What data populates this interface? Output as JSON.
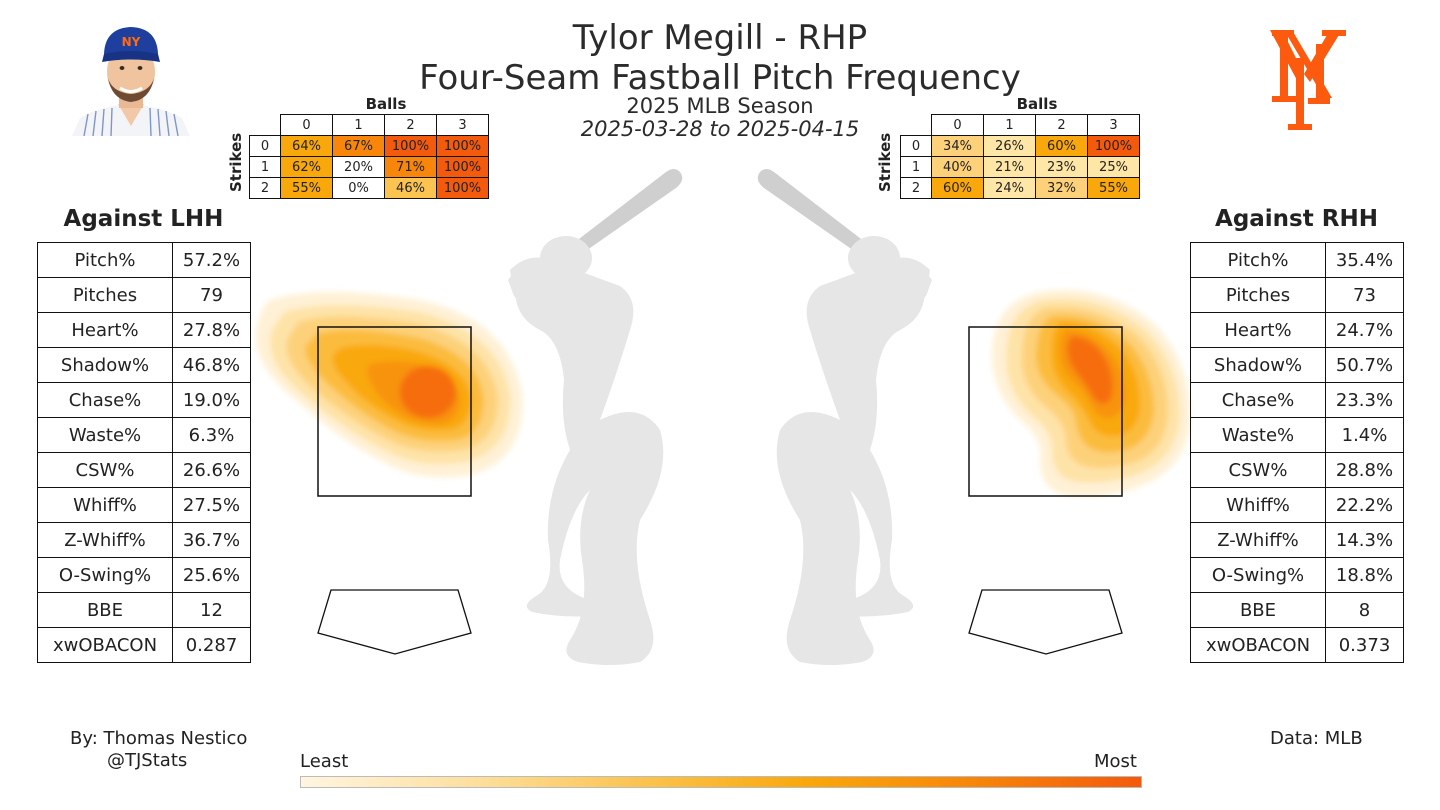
{
  "header": {
    "title": "Tylor Megill - RHP",
    "subtitle": "Four-Seam Fastball Pitch Frequency",
    "season": "2025 MLB Season",
    "date_range": "2025-03-28 to 2025-04-15"
  },
  "icons": {
    "player_photo": "player-headshot",
    "team_logo": "mets-ny-logo"
  },
  "colors": {
    "least": "#fff5e1",
    "mid": "#f9a80c",
    "most": "#f45a0c",
    "zone_line": "#111111",
    "silhouette": "#e6e6e6"
  },
  "chart_data": [
    {
      "type": "heatmap",
      "name": "Count frequency vs LHH",
      "x_title": "Balls",
      "y_title": "Strikes",
      "balls": [
        "0",
        "1",
        "2",
        "3"
      ],
      "strikes": [
        "0",
        "1",
        "2"
      ],
      "values": [
        [
          "64%",
          "67%",
          "100%",
          "100%"
        ],
        [
          "62%",
          "20%",
          "71%",
          "100%"
        ],
        [
          "55%",
          "0%",
          "46%",
          "100%"
        ]
      ]
    },
    {
      "type": "heatmap",
      "name": "Count frequency vs RHH",
      "x_title": "Balls",
      "y_title": "Strikes",
      "balls": [
        "0",
        "1",
        "2",
        "3"
      ],
      "strikes": [
        "0",
        "1",
        "2"
      ],
      "values": [
        [
          "34%",
          "26%",
          "60%",
          "100%"
        ],
        [
          "40%",
          "21%",
          "23%",
          "25%"
        ],
        [
          "60%",
          "24%",
          "32%",
          "55%"
        ]
      ]
    },
    {
      "type": "heatmap",
      "name": "Location density vs LHH",
      "density_peak": "inner middle of the zone",
      "legend_labels": [
        "Least",
        "Most"
      ]
    },
    {
      "type": "heatmap",
      "name": "Location density vs RHH",
      "density_peak": "upper middle of the zone",
      "legend_labels": [
        "Least",
        "Most"
      ]
    }
  ],
  "lhh": {
    "title": "Against LHH",
    "rows": [
      {
        "label": "Pitch%",
        "value": "57.2%"
      },
      {
        "label": "Pitches",
        "value": "79"
      },
      {
        "label": "Heart%",
        "value": "27.8%"
      },
      {
        "label": "Shadow%",
        "value": "46.8%"
      },
      {
        "label": "Chase%",
        "value": "19.0%"
      },
      {
        "label": "Waste%",
        "value": "6.3%"
      },
      {
        "label": "CSW%",
        "value": "26.6%"
      },
      {
        "label": "Whiff%",
        "value": "27.5%"
      },
      {
        "label": "Z-Whiff%",
        "value": "36.7%"
      },
      {
        "label": "O-Swing%",
        "value": "25.6%"
      },
      {
        "label": "BBE",
        "value": "12"
      },
      {
        "label": "xwOBACON",
        "value": "0.287"
      }
    ]
  },
  "rhh": {
    "title": "Against RHH",
    "rows": [
      {
        "label": "Pitch%",
        "value": "35.4%"
      },
      {
        "label": "Pitches",
        "value": "73"
      },
      {
        "label": "Heart%",
        "value": "24.7%"
      },
      {
        "label": "Shadow%",
        "value": "50.7%"
      },
      {
        "label": "Chase%",
        "value": "23.3%"
      },
      {
        "label": "Waste%",
        "value": "1.4%"
      },
      {
        "label": "CSW%",
        "value": "28.8%"
      },
      {
        "label": "Whiff%",
        "value": "22.2%"
      },
      {
        "label": "Z-Whiff%",
        "value": "14.3%"
      },
      {
        "label": "O-Swing%",
        "value": "18.8%"
      },
      {
        "label": "BBE",
        "value": "8"
      },
      {
        "label": "xwOBACON",
        "value": "0.373"
      }
    ]
  },
  "legend": {
    "least": "Least",
    "most": "Most"
  },
  "footer": {
    "by": "By: Thomas Nestico",
    "handle": "@TJStats",
    "source": "Data: MLB"
  }
}
